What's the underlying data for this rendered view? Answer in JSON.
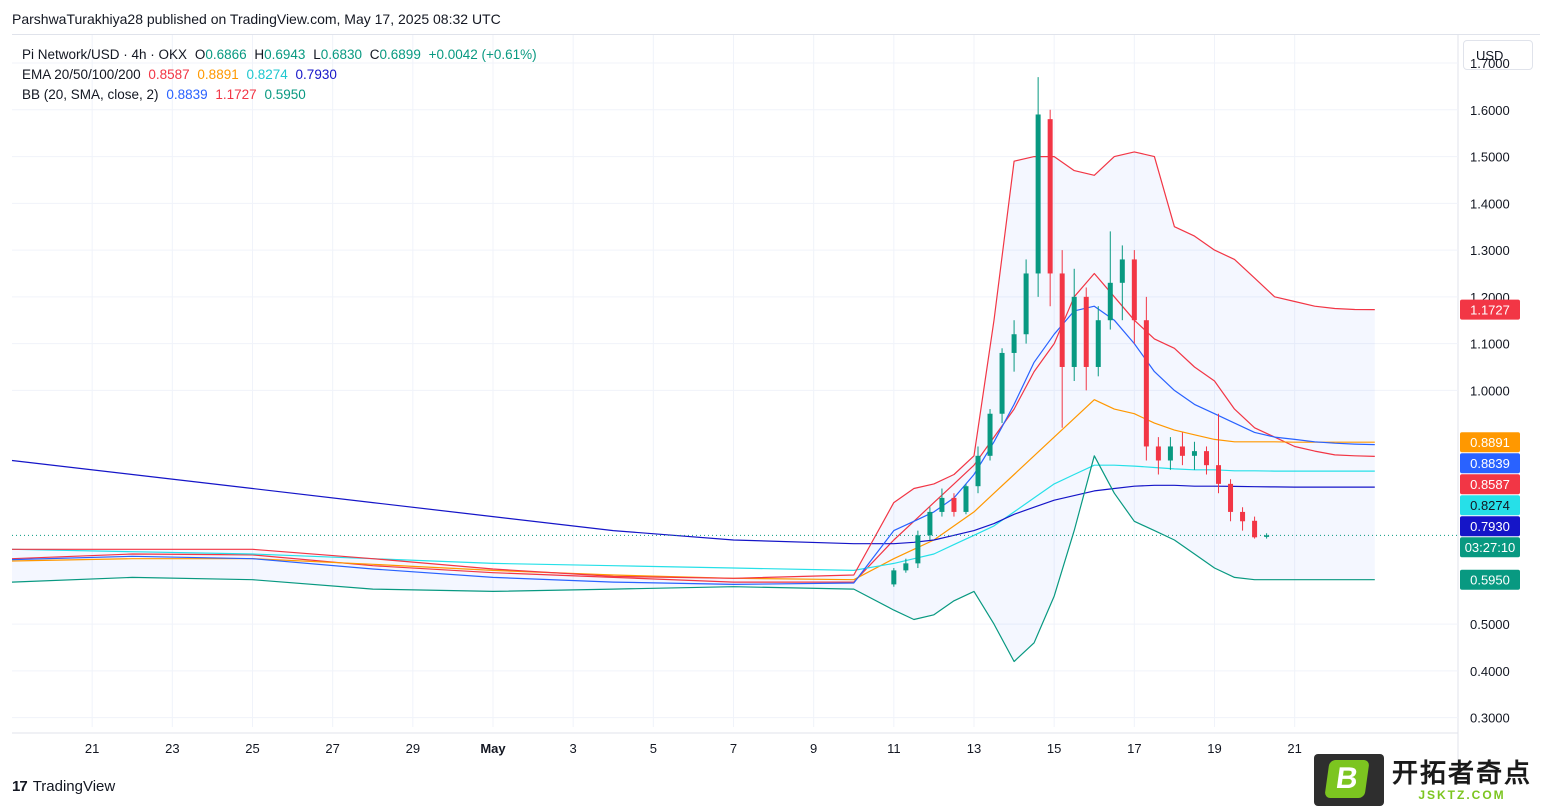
{
  "header": {
    "publisher": "ParshwaTurakhiya28 published on TradingView.com, May 17, 2025 08:32 UTC"
  },
  "legend": {
    "symbol": "Pi Network/USD · 4h · OKX",
    "o_label": "O",
    "o_value": "0.6866",
    "h_label": "H",
    "h_value": "0.6943",
    "l_label": "L",
    "l_value": "0.6830",
    "c_label": "C",
    "c_value": "0.6899",
    "change": "+0.0042 (+0.61%)",
    "ema_label": "EMA 20/50/100/200",
    "ema_values": [
      "0.8587",
      "0.8891",
      "0.8274",
      "0.7930"
    ],
    "bb_label": "BB (20, SMA, close, 2)",
    "bb_values": [
      "0.8839",
      "1.1727",
      "0.5950"
    ]
  },
  "toolbar": {
    "currency": "USD"
  },
  "colors": {
    "ema20": "#f23645",
    "ema50": "#ff9800",
    "ema100": "#26e0e8",
    "ema200": "#1515c8",
    "bb_basis": "#2962ff",
    "bb_upper": "#f23645",
    "bb_lower": "#089981",
    "up": "#089981",
    "down": "#f23645",
    "countdown": "#089981"
  },
  "chart_data": {
    "type": "line",
    "title": "Pi Network/USD · 4h · OKX",
    "ylim": [
      0.28,
      1.76
    ],
    "y_ticks": [
      "1.7000",
      "1.6000",
      "1.5000",
      "1.4000",
      "1.3000",
      "1.2000",
      "1.1000",
      "1.0000",
      "0.5000",
      "0.4000",
      "0.3000"
    ],
    "x_ticks": [
      "21",
      "23",
      "25",
      "27",
      "29",
      "May",
      "3",
      "5",
      "7",
      "9",
      "11",
      "13",
      "15",
      "17",
      "19",
      "21"
    ],
    "x": [
      0,
      3,
      6,
      9,
      12,
      15,
      18,
      21,
      22,
      22.5,
      23,
      23.5,
      24,
      24.5,
      25,
      25.5,
      26,
      26.5,
      27,
      27.5,
      28,
      28.5,
      29,
      29.5,
      30,
      30.5,
      31,
      31.5,
      32,
      32.5,
      33,
      33.5,
      34
    ],
    "series": [
      {
        "name": "EMA 20",
        "values": [
          0.64,
          0.65,
          0.648,
          0.625,
          0.61,
          0.6,
          0.59,
          0.59,
          0.68,
          0.72,
          0.76,
          0.8,
          0.84,
          0.9,
          0.96,
          1.04,
          1.1,
          1.2,
          1.25,
          1.2,
          1.15,
          1.11,
          1.09,
          1.05,
          1.02,
          0.96,
          0.92,
          0.9,
          0.88,
          0.87,
          0.862,
          0.86,
          0.8587
        ]
      },
      {
        "name": "EMA 50",
        "values": [
          0.635,
          0.64,
          0.64,
          0.628,
          0.615,
          0.605,
          0.598,
          0.595,
          0.64,
          0.66,
          0.68,
          0.71,
          0.74,
          0.78,
          0.82,
          0.86,
          0.9,
          0.94,
          0.98,
          0.96,
          0.95,
          0.93,
          0.915,
          0.905,
          0.895,
          0.89,
          0.89,
          0.89,
          0.8891,
          0.8891,
          0.8891,
          0.8891,
          0.8891
        ]
      },
      {
        "name": "EMA 100",
        "values": [
          0.66,
          0.655,
          0.65,
          0.64,
          0.63,
          0.625,
          0.62,
          0.615,
          0.63,
          0.64,
          0.65,
          0.67,
          0.69,
          0.71,
          0.74,
          0.77,
          0.8,
          0.82,
          0.84,
          0.84,
          0.838,
          0.835,
          0.832,
          0.83,
          0.83,
          0.828,
          0.828,
          0.8274,
          0.8274,
          0.8274,
          0.8274,
          0.8274,
          0.8274
        ]
      },
      {
        "name": "EMA 200",
        "values": [
          0.85,
          0.82,
          0.79,
          0.76,
          0.73,
          0.7,
          0.68,
          0.672,
          0.672,
          0.675,
          0.68,
          0.69,
          0.7,
          0.715,
          0.735,
          0.75,
          0.765,
          0.775,
          0.785,
          0.79,
          0.795,
          0.797,
          0.797,
          0.795,
          0.795,
          0.7945,
          0.794,
          0.7935,
          0.793,
          0.793,
          0.793,
          0.793,
          0.793
        ]
      },
      {
        "name": "BB Basis",
        "values": [
          0.638,
          0.645,
          0.64,
          0.618,
          0.6,
          0.59,
          0.585,
          0.588,
          0.7,
          0.72,
          0.74,
          0.77,
          0.82,
          0.89,
          0.97,
          1.06,
          1.12,
          1.17,
          1.18,
          1.15,
          1.1,
          1.04,
          1.0,
          0.97,
          0.95,
          0.93,
          0.91,
          0.9,
          0.895,
          0.89,
          0.887,
          0.885,
          0.8839
        ]
      },
      {
        "name": "BB Upper",
        "values": [
          0.66,
          0.66,
          0.66,
          0.64,
          0.618,
          0.602,
          0.598,
          0.605,
          0.76,
          0.79,
          0.8,
          0.82,
          0.86,
          1.15,
          1.49,
          1.5,
          1.5,
          1.47,
          1.46,
          1.5,
          1.51,
          1.5,
          1.35,
          1.33,
          1.3,
          1.28,
          1.24,
          1.2,
          1.19,
          1.18,
          1.175,
          1.173,
          1.1727
        ]
      },
      {
        "name": "BB Lower",
        "values": [
          0.59,
          0.6,
          0.595,
          0.575,
          0.57,
          0.575,
          0.58,
          0.575,
          0.53,
          0.51,
          0.52,
          0.55,
          0.57,
          0.5,
          0.42,
          0.46,
          0.56,
          0.7,
          0.86,
          0.78,
          0.72,
          0.7,
          0.68,
          0.65,
          0.62,
          0.6,
          0.595,
          0.595,
          0.595,
          0.595,
          0.595,
          0.595,
          0.595
        ]
      }
    ],
    "candles": [
      {
        "x": 22.0,
        "o": 0.585,
        "h": 0.62,
        "l": 0.58,
        "c": 0.615
      },
      {
        "x": 22.3,
        "o": 0.615,
        "h": 0.64,
        "l": 0.61,
        "c": 0.63
      },
      {
        "x": 22.6,
        "o": 0.63,
        "h": 0.7,
        "l": 0.62,
        "c": 0.69
      },
      {
        "x": 22.9,
        "o": 0.69,
        "h": 0.75,
        "l": 0.68,
        "c": 0.74
      },
      {
        "x": 23.2,
        "o": 0.74,
        "h": 0.79,
        "l": 0.73,
        "c": 0.77
      },
      {
        "x": 23.5,
        "o": 0.77,
        "h": 0.78,
        "l": 0.73,
        "c": 0.74
      },
      {
        "x": 23.8,
        "o": 0.74,
        "h": 0.8,
        "l": 0.735,
        "c": 0.795
      },
      {
        "x": 24.1,
        "o": 0.795,
        "h": 0.88,
        "l": 0.78,
        "c": 0.86
      },
      {
        "x": 24.4,
        "o": 0.86,
        "h": 0.96,
        "l": 0.85,
        "c": 0.95
      },
      {
        "x": 24.7,
        "o": 0.95,
        "h": 1.09,
        "l": 0.93,
        "c": 1.08
      },
      {
        "x": 25.0,
        "o": 1.08,
        "h": 1.15,
        "l": 1.04,
        "c": 1.12
      },
      {
        "x": 25.3,
        "o": 1.12,
        "h": 1.28,
        "l": 1.1,
        "c": 1.25
      },
      {
        "x": 25.6,
        "o": 1.25,
        "h": 1.67,
        "l": 1.2,
        "c": 1.59
      },
      {
        "x": 25.9,
        "o": 1.58,
        "h": 1.6,
        "l": 1.18,
        "c": 1.25
      },
      {
        "x": 26.2,
        "o": 1.25,
        "h": 1.3,
        "l": 0.92,
        "c": 1.05
      },
      {
        "x": 26.5,
        "o": 1.05,
        "h": 1.26,
        "l": 1.02,
        "c": 1.2
      },
      {
        "x": 26.8,
        "o": 1.2,
        "h": 1.22,
        "l": 1.0,
        "c": 1.05
      },
      {
        "x": 27.1,
        "o": 1.05,
        "h": 1.18,
        "l": 1.03,
        "c": 1.15
      },
      {
        "x": 27.4,
        "o": 1.15,
        "h": 1.34,
        "l": 1.13,
        "c": 1.23
      },
      {
        "x": 27.7,
        "o": 1.23,
        "h": 1.31,
        "l": 1.15,
        "c": 1.28
      },
      {
        "x": 28.0,
        "o": 1.28,
        "h": 1.3,
        "l": 1.1,
        "c": 1.15
      },
      {
        "x": 28.3,
        "o": 1.15,
        "h": 1.2,
        "l": 0.85,
        "c": 0.88
      },
      {
        "x": 28.6,
        "o": 0.88,
        "h": 0.9,
        "l": 0.82,
        "c": 0.85
      },
      {
        "x": 28.9,
        "o": 0.85,
        "h": 0.9,
        "l": 0.83,
        "c": 0.88
      },
      {
        "x": 29.2,
        "o": 0.88,
        "h": 0.91,
        "l": 0.84,
        "c": 0.86
      },
      {
        "x": 29.5,
        "o": 0.86,
        "h": 0.89,
        "l": 0.83,
        "c": 0.87
      },
      {
        "x": 29.8,
        "o": 0.87,
        "h": 0.88,
        "l": 0.82,
        "c": 0.84
      },
      {
        "x": 30.1,
        "o": 0.84,
        "h": 0.95,
        "l": 0.78,
        "c": 0.8
      },
      {
        "x": 30.4,
        "o": 0.8,
        "h": 0.81,
        "l": 0.72,
        "c": 0.74
      },
      {
        "x": 30.7,
        "o": 0.74,
        "h": 0.75,
        "l": 0.7,
        "c": 0.72
      },
      {
        "x": 31.0,
        "o": 0.721,
        "h": 0.73,
        "l": 0.683,
        "c": 0.6857
      },
      {
        "x": 31.3,
        "o": 0.6866,
        "h": 0.6943,
        "l": 0.683,
        "c": 0.6899
      }
    ],
    "last_price_countdown": "03:27:10"
  },
  "labels": {
    "bb_upper": "1.1727",
    "ema50": "0.8891",
    "bb_basis": "0.8839",
    "ema20": "0.8587",
    "ema100": "0.8274",
    "ema200": "0.7930",
    "countdown": "03:27:10",
    "bb_lower": "0.5950"
  },
  "footer": {
    "brand": "TradingView",
    "logo_mark": "17"
  },
  "watermark": {
    "badge": "B",
    "cn": "开拓者奇点",
    "en": "JSKTZ.COM"
  }
}
